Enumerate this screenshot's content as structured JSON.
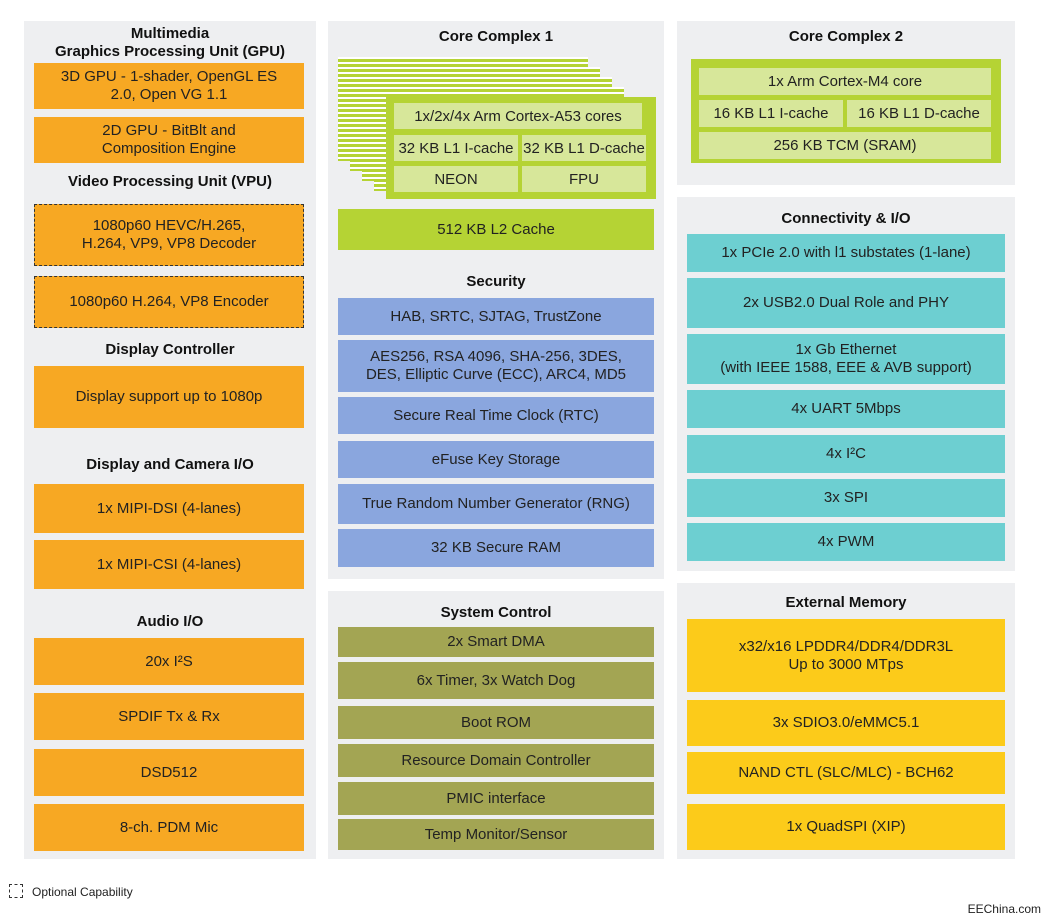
{
  "gpu": {
    "title": "Multimedia\nGraphics Processing Unit (GPU)",
    "items": [
      "3D GPU - 1-shader, OpenGL ES\n2.0, Open VG 1.1",
      "2D GPU - BitBlt and\nComposition Engine"
    ]
  },
  "vpu": {
    "title": "Video Processing Unit (VPU)",
    "items": [
      "1080p60 HEVC/H.265,\nH.264, VP9, VP8 Decoder",
      "1080p60 H.264, VP8 Encoder"
    ]
  },
  "display": {
    "title": "Display Controller",
    "items": [
      "Display support up to 1080p"
    ]
  },
  "camera": {
    "title": "Display and Camera I/O",
    "items": [
      "1x MIPI-DSI (4-lanes)",
      "1x MIPI-CSI (4-lanes)"
    ]
  },
  "audio": {
    "title": "Audio I/O",
    "items": [
      "20x I²S",
      "SPDIF Tx & Rx",
      "DSD512",
      "8-ch. PDM Mic"
    ]
  },
  "core1": {
    "title": "Core Complex 1",
    "cores": "1x/2x/4x Arm Cortex-A53 cores",
    "l1i": "32 KB L1 I-cache",
    "l1d": "32 KB L1 D-cache",
    "neon": "NEON",
    "fpu": "FPU",
    "l2": "512 KB L2 Cache"
  },
  "core2": {
    "title": "Core Complex 2",
    "core": "1x Arm Cortex-M4 core",
    "l1i": "16 KB L1  I-cache",
    "l1d": "16 KB L1 D-cache",
    "tcm": "256 KB TCM (SRAM)"
  },
  "security": {
    "title": "Security",
    "items": [
      "HAB, SRTC, SJTAG, TrustZone",
      "AES256, RSA 4096, SHA-256, 3DES,\nDES, Elliptic Curve (ECC), ARC4, MD5",
      "Secure Real Time Clock (RTC)",
      "eFuse Key Storage",
      "True Random Number Generator (RNG)",
      "32 KB Secure RAM"
    ]
  },
  "system": {
    "title": "System Control",
    "items": [
      "2x Smart DMA",
      "6x Timer, 3x Watch Dog",
      "Boot ROM",
      "Resource Domain Controller",
      "PMIC interface",
      "Temp Monitor/Sensor"
    ]
  },
  "connectivity": {
    "title": "Connectivity & I/O",
    "items": [
      "1x PCIe 2.0 with l1 substates (1-lane)",
      "2x USB2.0 Dual Role and PHY",
      "1x Gb Ethernet\n(with IEEE 1588, EEE & AVB support)",
      "4x UART 5Mbps",
      "4x I²C",
      "3x SPI",
      "4x PWM"
    ]
  },
  "memory": {
    "title": "External Memory",
    "items": [
      "x32/x16 LPDDR4/DDR4/DDR3L\nUp to 3000 MTps",
      "3x SDIO3.0/eMMC5.1",
      "NAND CTL (SLC/MLC) - BCH62",
      "1x QuadSPI (XIP)"
    ]
  },
  "legend": "Optional Capability",
  "credit": "EEChina.com",
  "colors": {
    "orange": "#f7a823",
    "lime": "#b5d334",
    "blue": "#8aa6de",
    "olive": "#a3a553",
    "teal": "#6dcfd1",
    "yellow": "#fccb1a"
  }
}
